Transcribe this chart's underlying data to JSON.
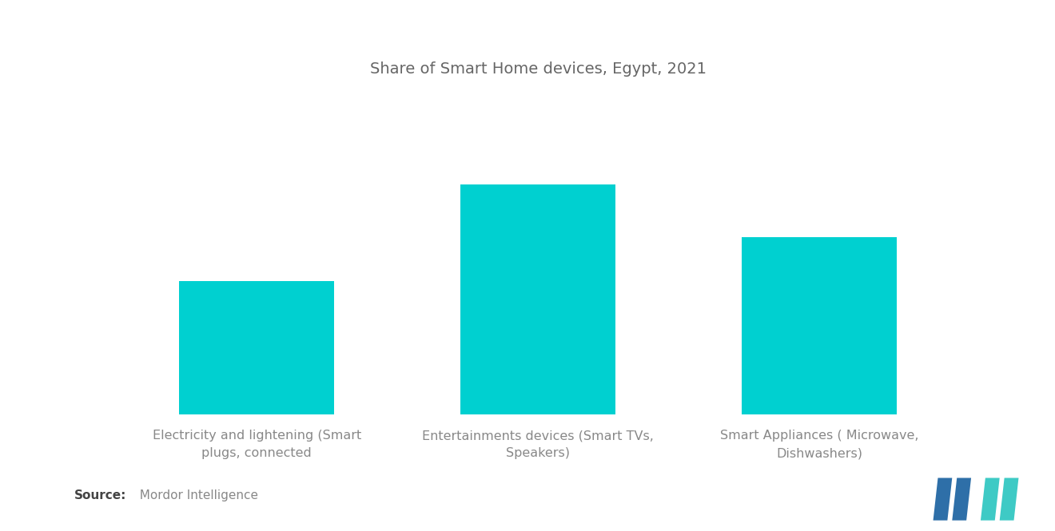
{
  "title": "Share of Smart Home devices, Egypt, 2021",
  "title_fontsize": 14,
  "title_color": "#666666",
  "background_color": "#ffffff",
  "bar_color": "#00D0D0",
  "categories": [
    "Electricity and lightening (Smart\nplugs, connected",
    "Entertainments devices (Smart TVs,\nSpeakers)",
    "Smart Appliances ( Microwave,\nDishwashers)"
  ],
  "values": [
    30,
    52,
    40
  ],
  "source_bold": "Source:",
  "source_normal": "  Mordor Intelligence",
  "source_fontsize": 11,
  "label_fontsize": 11.5,
  "label_color": "#888888",
  "bar_width": 0.55,
  "ylim_max": 72,
  "logo_colors": {
    "dark_blue": "#2E6FA8",
    "teal": "#3ECAC5"
  }
}
